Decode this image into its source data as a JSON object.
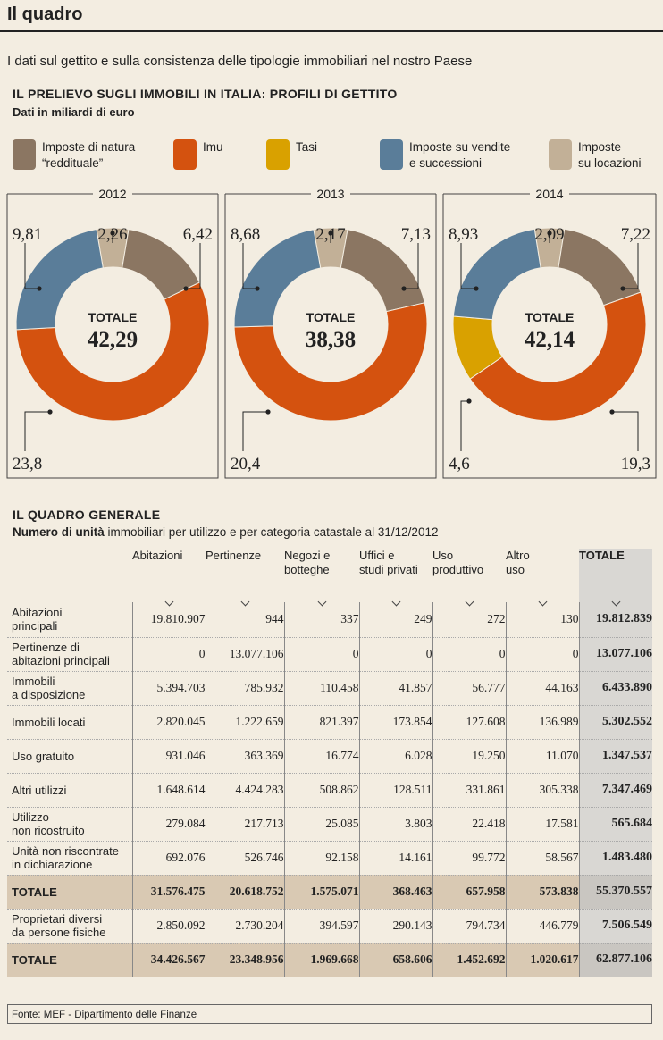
{
  "header": {
    "title": "Il quadro",
    "subtitle": "I dati   sul gettito e sulla consistenza delle tipologie immobiliari nel nostro Paese"
  },
  "section1": {
    "title": "IL PRELIEVO SUGLI IMMOBILI IN ITALIA: PROFILI DI GETTITO",
    "subtitle": "Dati in miliardi di euro"
  },
  "legend": [
    {
      "line1": "Imposte di natura",
      "line2": "“reddituale”",
      "color": "#8b7662"
    },
    {
      "line1": "Imu",
      "line2": "",
      "color": "#d4520f"
    },
    {
      "line1": "Tasi",
      "line2": "",
      "color": "#d9a100"
    },
    {
      "line1": "Imposte su vendite",
      "line2": "e successioni",
      "color": "#5a7d99"
    },
    {
      "line1": "Imposte",
      "line2": "su locazioni",
      "color": "#c2b097"
    }
  ],
  "chart_data": {
    "type": "pie",
    "variant": "donut",
    "title": "IL PRELIEVO SUGLI IMMOBILI IN ITALIA: PROFILI DI GETTITO",
    "unit": "miliardi di euro",
    "series_names": [
      "Imposte di natura “reddituale”",
      "Imu",
      "Tasi",
      "Imposte su vendite e successioni",
      "Imposte su locazioni"
    ],
    "charts": [
      {
        "year": "2012",
        "total_label": "TOTALE",
        "total": "42,29",
        "values": [
          6.42,
          23.8,
          0,
          9.81,
          2.26
        ],
        "labels": [
          "6,42",
          "23,8",
          "",
          "9,81",
          "2,26"
        ]
      },
      {
        "year": "2013",
        "total_label": "TOTALE",
        "total": "38,38",
        "values": [
          7.13,
          20.4,
          0,
          8.68,
          2.17
        ],
        "labels": [
          "7,13",
          "20,4",
          "",
          "8,68",
          "2,17"
        ]
      },
      {
        "year": "2014",
        "total_label": "TOTALE",
        "total": "42,14",
        "values": [
          7.22,
          19.3,
          4.6,
          8.93,
          2.09
        ],
        "labels": [
          "7,22",
          "19,3",
          "4,6",
          "8,93",
          "2,09"
        ]
      }
    ]
  },
  "section2": {
    "title": "IL QUADRO GENERALE",
    "subtitle_bold": "Numero di unità",
    "subtitle_rest": " immobiliari per utilizzo e per categoria catastale al 31/12/2012"
  },
  "table": {
    "columns": [
      "Abitazioni",
      "Pertinenze",
      "Negozi e botteghe",
      "Uffici e studi privati",
      "Uso produttivo",
      "Altro uso",
      "TOTALE"
    ],
    "columns_lines": [
      [
        "Abitazioni"
      ],
      [
        "Pertinenze"
      ],
      [
        "Negozi e",
        "botteghe"
      ],
      [
        "Uffici e",
        "studi privati"
      ],
      [
        "Uso",
        "produttivo"
      ],
      [
        "Altro",
        "uso"
      ],
      [
        "TOTALE"
      ]
    ],
    "rows": [
      {
        "label": [
          "Abitazioni",
          "principali"
        ],
        "values": [
          "19.810.907",
          "944",
          "337",
          "249",
          "272",
          "130",
          "19.812.839"
        ]
      },
      {
        "label": [
          "Pertinenze di",
          "abitazioni principali"
        ],
        "values": [
          "0",
          "13.077.106",
          "0",
          "0",
          "0",
          "0",
          "13.077.106"
        ]
      },
      {
        "label": [
          "Immobili",
          "a disposizione"
        ],
        "values": [
          "5.394.703",
          "785.932",
          "110.458",
          "41.857",
          "56.777",
          "44.163",
          "6.433.890"
        ]
      },
      {
        "label": [
          "Immobili locati"
        ],
        "values": [
          "2.820.045",
          "1.222.659",
          "821.397",
          "173.854",
          "127.608",
          "136.989",
          "5.302.552"
        ]
      },
      {
        "label": [
          "Uso gratuito"
        ],
        "values": [
          "931.046",
          "363.369",
          "16.774",
          "6.028",
          "19.250",
          "11.070",
          "1.347.537"
        ]
      },
      {
        "label": [
          "Altri utilizzi"
        ],
        "values": [
          "1.648.614",
          "4.424.283",
          "508.862",
          "128.511",
          "331.861",
          "305.338",
          "7.347.469"
        ]
      },
      {
        "label": [
          "Utilizzo",
          "non ricostruito"
        ],
        "values": [
          "279.084",
          "217.713",
          "25.085",
          "3.803",
          "22.418",
          "17.581",
          "565.684"
        ]
      },
      {
        "label": [
          "Unità non riscontrate",
          "in dichiarazione"
        ],
        "values": [
          "692.076",
          "526.746",
          "92.158",
          "14.161",
          "99.772",
          "58.567",
          "1.483.480"
        ]
      },
      {
        "label": [
          "TOTALE"
        ],
        "values": [
          "31.576.475",
          "20.618.752",
          "1.575.071",
          "368.463",
          "657.958",
          "573.838",
          "55.370.557"
        ],
        "total": true
      },
      {
        "label": [
          "Proprietari diversi",
          "da persone fisiche"
        ],
        "values": [
          "2.850.092",
          "2.730.204",
          "394.597",
          "290.143",
          "794.734",
          "446.779",
          "7.506.549"
        ]
      },
      {
        "label": [
          "TOTALE"
        ],
        "values": [
          "34.426.567",
          "23.348.956",
          "1.969.668",
          "658.606",
          "1.452.692",
          "1.020.617",
          "62.877.106"
        ],
        "total": true
      }
    ]
  },
  "source": "Fonte: MEF - Dipartimento delle Finanze"
}
